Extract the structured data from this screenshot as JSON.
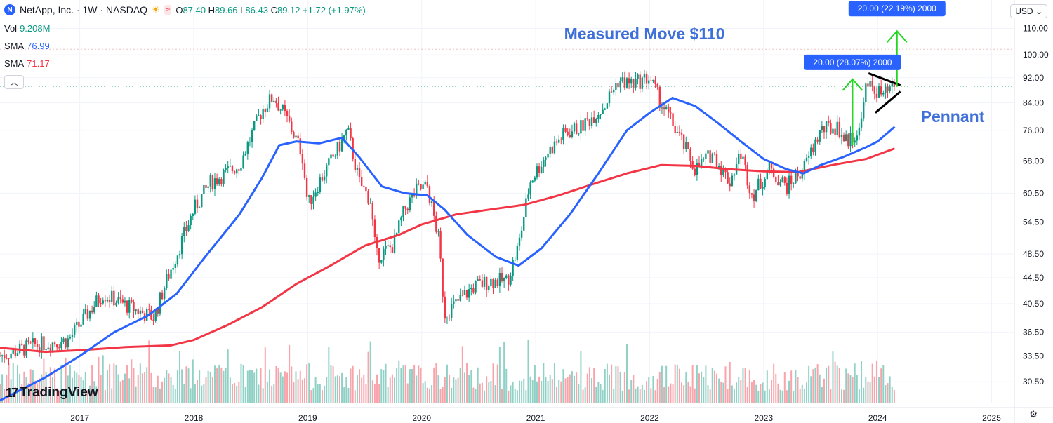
{
  "header": {
    "logo_letter": "N",
    "symbol": "NetApp, Inc. · 1W · NASDAQ",
    "open_label": "O",
    "open": "87.40",
    "high_label": "H",
    "high": "89.66",
    "low_label": "L",
    "low": "86.43",
    "close_label": "C",
    "close": "89.12",
    "change": "+1.72 (+1.97%)"
  },
  "indicators": {
    "vol_label": "Vol",
    "vol_value": "9.208M",
    "sma1_label": "SMA",
    "sma1_value": "76.99",
    "sma2_label": "SMA",
    "sma2_value": "71.17"
  },
  "currency": "USD",
  "branding": "TradingView",
  "colors": {
    "up": "#089981",
    "down": "#f23645",
    "sma50": "#2962ff",
    "sma200": "#f23645",
    "annotation": "#3f6fd8",
    "arrow": "#22d622",
    "badge": "#2962ff",
    "crosshair": "#f0c2c2"
  },
  "chart_data": {
    "type": "candlestick",
    "title": "NetApp, Inc. · 1W · NASDAQ",
    "x_ticks": [
      "2017",
      "2018",
      "2019",
      "2020",
      "2021",
      "2022",
      "2023",
      "2024",
      "2025"
    ],
    "y_ticks": [
      "110.00",
      "100.00",
      "92.00",
      "84.00",
      "76.00",
      "68.00",
      "60.50",
      "54.50",
      "48.50",
      "44.50",
      "40.50",
      "36.50",
      "33.50",
      "30.50"
    ],
    "y_scale": "log",
    "ylim": [
      28.2,
      122
    ],
    "price_path": [
      [
        2016.3,
        33.5
      ],
      [
        2016.6,
        34.8
      ],
      [
        2016.9,
        35.5
      ],
      [
        2017.2,
        42.0
      ],
      [
        2017.5,
        39.5
      ],
      [
        2017.65,
        38.5
      ],
      [
        2017.75,
        43.5
      ],
      [
        2018.0,
        57.0
      ],
      [
        2018.15,
        63.0
      ],
      [
        2018.4,
        67.0
      ],
      [
        2018.6,
        82.0
      ],
      [
        2018.7,
        86.0
      ],
      [
        2018.82,
        79.0
      ],
      [
        2018.95,
        70.0
      ],
      [
        2019.0,
        58.0
      ],
      [
        2019.1,
        63.0
      ],
      [
        2019.3,
        73.0
      ],
      [
        2019.35,
        76.0
      ],
      [
        2019.45,
        63.0
      ],
      [
        2019.55,
        59.0
      ],
      [
        2019.6,
        48.0
      ],
      [
        2019.75,
        50.0
      ],
      [
        2019.85,
        57.0
      ],
      [
        2019.95,
        61.0
      ],
      [
        2020.05,
        62.0
      ],
      [
        2020.15,
        51.0
      ],
      [
        2020.2,
        39.0
      ],
      [
        2020.3,
        40.5
      ],
      [
        2020.45,
        43.0
      ],
      [
        2020.6,
        44.0
      ],
      [
        2020.75,
        44.0
      ],
      [
        2020.85,
        50.0
      ],
      [
        2020.95,
        63.0
      ],
      [
        2021.1,
        70.0
      ],
      [
        2021.25,
        75.0
      ],
      [
        2021.4,
        77.0
      ],
      [
        2021.6,
        83.0
      ],
      [
        2021.72,
        91.0
      ],
      [
        2021.85,
        90.0
      ],
      [
        2022.0,
        92.0
      ],
      [
        2022.1,
        84.0
      ],
      [
        2022.25,
        75.0
      ],
      [
        2022.4,
        66.0
      ],
      [
        2022.55,
        70.0
      ],
      [
        2022.7,
        63.0
      ],
      [
        2022.8,
        70.0
      ],
      [
        2022.9,
        60.0
      ],
      [
        2023.05,
        66.0
      ],
      [
        2023.2,
        62.0
      ],
      [
        2023.35,
        66.0
      ],
      [
        2023.5,
        76.0
      ],
      [
        2023.65,
        77.0
      ],
      [
        2023.72,
        73.0
      ],
      [
        2023.85,
        76.0
      ],
      [
        2023.88,
        88.0
      ],
      [
        2023.95,
        89.0
      ],
      [
        2024.05,
        86.0
      ],
      [
        2024.15,
        89.1
      ]
    ],
    "series": [
      {
        "name": "SMA 50",
        "value_label": "76.99",
        "points": [
          [
            2016.3,
            28.5
          ],
          [
            2016.7,
            31.0
          ],
          [
            2017.0,
            33.5
          ],
          [
            2017.3,
            36.5
          ],
          [
            2017.6,
            38.8
          ],
          [
            2017.85,
            42.0
          ],
          [
            2018.1,
            48.0
          ],
          [
            2018.4,
            56.0
          ],
          [
            2018.6,
            64.0
          ],
          [
            2018.75,
            72.0
          ],
          [
            2018.9,
            73.0
          ],
          [
            2019.1,
            72.5
          ],
          [
            2019.3,
            74.0
          ],
          [
            2019.45,
            69.0
          ],
          [
            2019.65,
            62.0
          ],
          [
            2019.85,
            60.5
          ],
          [
            2020.05,
            60.0
          ],
          [
            2020.2,
            57.0
          ],
          [
            2020.4,
            52.0
          ],
          [
            2020.65,
            48.0
          ],
          [
            2020.85,
            46.5
          ],
          [
            2021.05,
            49.5
          ],
          [
            2021.3,
            56.0
          ],
          [
            2021.55,
            65.0
          ],
          [
            2021.8,
            76.0
          ],
          [
            2022.0,
            81.0
          ],
          [
            2022.2,
            85.5
          ],
          [
            2022.4,
            83.0
          ],
          [
            2022.6,
            78.0
          ],
          [
            2022.8,
            73.0
          ],
          [
            2023.0,
            68.5
          ],
          [
            2023.2,
            66.0
          ],
          [
            2023.35,
            65.0
          ],
          [
            2023.5,
            67.0
          ],
          [
            2023.7,
            69.0
          ],
          [
            2023.9,
            71.5
          ],
          [
            2024.0,
            73.0
          ],
          [
            2024.15,
            76.99
          ]
        ]
      },
      {
        "name": "SMA 200",
        "value_label": "71.17",
        "points": [
          [
            2016.3,
            34.5
          ],
          [
            2016.7,
            34.0
          ],
          [
            2017.0,
            34.2
          ],
          [
            2017.4,
            34.6
          ],
          [
            2017.8,
            34.8
          ],
          [
            2018.0,
            35.5
          ],
          [
            2018.3,
            37.5
          ],
          [
            2018.6,
            40.0
          ],
          [
            2018.9,
            43.5
          ],
          [
            2019.2,
            46.5
          ],
          [
            2019.5,
            50.0
          ],
          [
            2019.8,
            52.0
          ],
          [
            2020.0,
            54.0
          ],
          [
            2020.3,
            56.0
          ],
          [
            2020.6,
            57.0
          ],
          [
            2020.9,
            58.0
          ],
          [
            2021.2,
            60.0
          ],
          [
            2021.5,
            62.5
          ],
          [
            2021.8,
            65.0
          ],
          [
            2022.1,
            67.0
          ],
          [
            2022.4,
            66.8
          ],
          [
            2022.7,
            66.0
          ],
          [
            2023.0,
            65.5
          ],
          [
            2023.3,
            65.3
          ],
          [
            2023.6,
            67.0
          ],
          [
            2023.9,
            68.5
          ],
          [
            2024.15,
            71.17
          ]
        ]
      }
    ],
    "volume_note": "weekly volume histogram, up/down colored",
    "annotations": {
      "measured_move": "Measured Move $110",
      "pennant": "Pennant",
      "badge1": "20.00 (28.07%) 2000",
      "badge2": "20.00 (22.19%) 2000",
      "arrow1": {
        "x": 2023.78,
        "from": 72.0,
        "to": 91.5
      },
      "arrow2": {
        "x": 2024.17,
        "from": 89.0,
        "to": 109.0
      },
      "pennant_upper": [
        [
          2023.92,
          93.5
        ],
        [
          2024.2,
          89.5
        ]
      ],
      "pennant_lower": [
        [
          2023.98,
          81.0
        ],
        [
          2024.2,
          87.5
        ]
      ]
    }
  }
}
